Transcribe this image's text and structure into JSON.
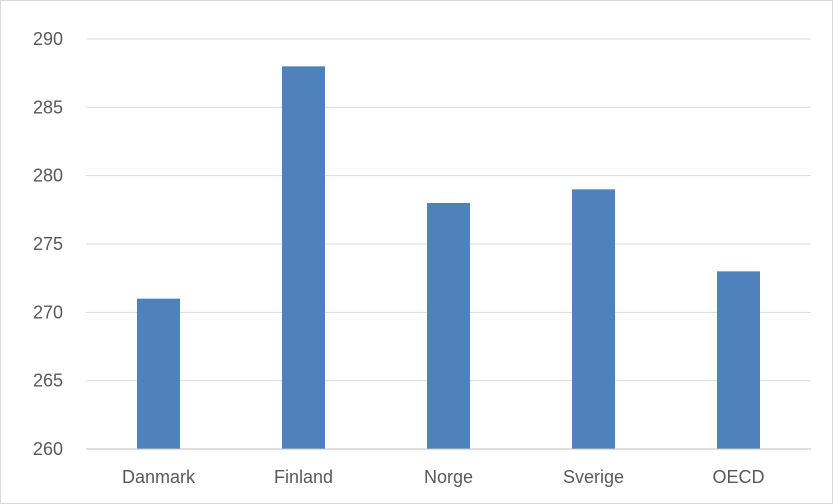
{
  "chart_data": {
    "type": "bar",
    "categories": [
      "Danmark",
      "Finland",
      "Norge",
      "Sverige",
      "OECD"
    ],
    "values": [
      271,
      288,
      278,
      279,
      273
    ],
    "ylim": [
      260,
      290
    ],
    "yticks": [
      260,
      265,
      270,
      275,
      280,
      285,
      290
    ],
    "grid": true,
    "legend": "none",
    "colors": {
      "bar": "#4f81bd",
      "grid": "#d9d9d9",
      "axis": "#bfbfbf",
      "text": "#595959"
    }
  }
}
